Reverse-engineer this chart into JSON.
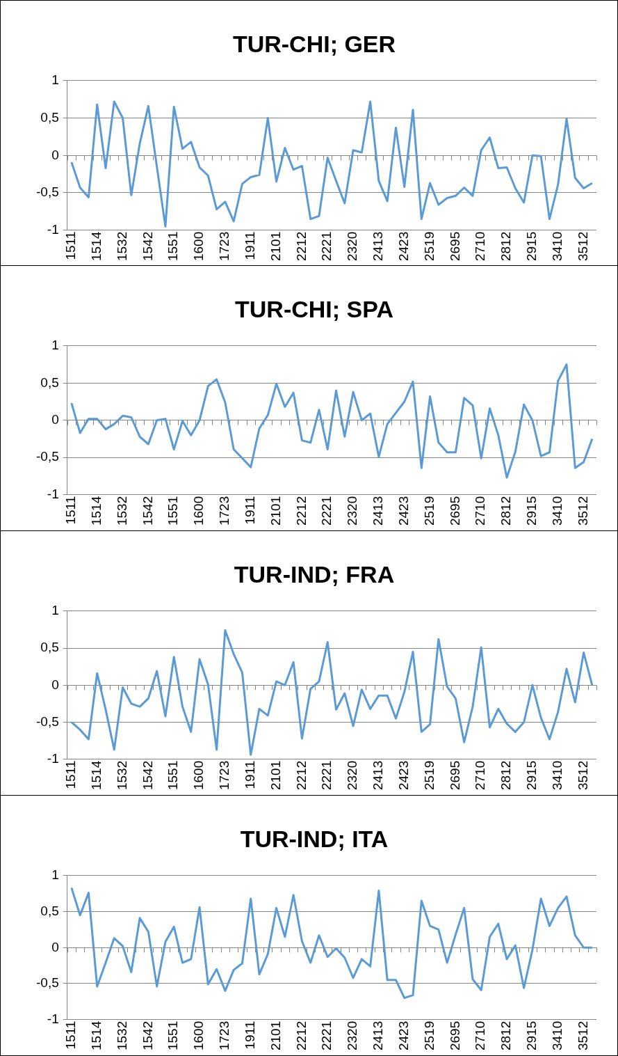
{
  "chart_data": [
    {
      "type": "line",
      "title": "TUR-CHI; GER",
      "categories": [
        "1511",
        null,
        null,
        "1514",
        null,
        null,
        "1532",
        null,
        null,
        "1542",
        null,
        null,
        "1551",
        null,
        null,
        "1600",
        null,
        null,
        "1723",
        null,
        null,
        "1911",
        null,
        null,
        "2101",
        null,
        null,
        "2212",
        null,
        null,
        "2221",
        null,
        null,
        "2320",
        null,
        null,
        "2413",
        null,
        null,
        "2423",
        null,
        null,
        "2519",
        null,
        null,
        "2695",
        null,
        null,
        "2710",
        null,
        null,
        "2812",
        null,
        null,
        "2915",
        null,
        null,
        "3410",
        null,
        null,
        "3512",
        null
      ],
      "series": [
        {
          "color": "#5b9bd5",
          "values": [
            -0.09,
            -0.43,
            -0.56,
            0.68,
            -0.17,
            0.72,
            0.5,
            -0.53,
            0.16,
            0.66,
            -0.15,
            -0.95,
            0.65,
            0.09,
            0.18,
            -0.16,
            -0.27,
            -0.72,
            -0.62,
            -0.88,
            -0.38,
            -0.29,
            -0.26,
            0.5,
            -0.35,
            0.1,
            -0.19,
            -0.14,
            -0.85,
            -0.81,
            -0.03,
            -0.34,
            -0.64,
            0.07,
            0.04,
            0.72,
            -0.34,
            -0.61,
            0.37,
            -0.42,
            0.61,
            -0.85,
            -0.37,
            -0.66,
            -0.57,
            -0.54,
            -0.43,
            -0.54,
            0.07,
            0.24,
            -0.17,
            -0.16,
            -0.44,
            -0.63,
            0,
            -0.01,
            -0.85,
            -0.39,
            0.49,
            -0.3,
            -0.44,
            -0.37
          ]
        }
      ],
      "ylim": [
        -1,
        1
      ],
      "yticks": [
        {
          "value": -1,
          "label": "-1"
        },
        {
          "value": -0.5,
          "label": "-0,5"
        },
        {
          "value": 0,
          "label": "0"
        },
        {
          "value": 0.5,
          "label": "0,5"
        },
        {
          "value": 1,
          "label": "1"
        }
      ],
      "grid": "y"
    },
    {
      "type": "line",
      "title": "TUR-CHI; SPA",
      "categories": [
        "1511",
        null,
        null,
        "1514",
        null,
        null,
        "1532",
        null,
        null,
        "1542",
        null,
        null,
        "1551",
        null,
        null,
        "1600",
        null,
        null,
        "1723",
        null,
        null,
        "1911",
        null,
        null,
        "2101",
        null,
        null,
        "2212",
        null,
        null,
        "2221",
        null,
        null,
        "2320",
        null,
        null,
        "2413",
        null,
        null,
        "2423",
        null,
        null,
        "2519",
        null,
        null,
        "2695",
        null,
        null,
        "2710",
        null,
        null,
        "2812",
        null,
        null,
        "2915",
        null,
        null,
        "3410",
        null,
        null,
        "3512",
        null
      ],
      "series": [
        {
          "color": "#5b9bd5",
          "values": [
            0.23,
            -0.17,
            0.02,
            0.02,
            -0.12,
            -0.05,
            0.06,
            0.04,
            -0.22,
            -0.32,
            0,
            0.02,
            -0.39,
            -0.01,
            -0.2,
            0,
            0.46,
            0.55,
            0.24,
            -0.39,
            -0.51,
            -0.63,
            -0.11,
            0.07,
            0.49,
            0.18,
            0.37,
            -0.27,
            -0.3,
            0.14,
            -0.39,
            0.4,
            -0.22,
            0.38,
            0,
            0.09,
            -0.49,
            -0.05,
            0.1,
            0.25,
            0.52,
            -0.64,
            0.32,
            -0.3,
            -0.43,
            -0.43,
            0.3,
            0.2,
            -0.51,
            0.16,
            -0.2,
            -0.77,
            -0.42,
            0.21,
            0,
            -0.48,
            -0.43,
            0.53,
            0.75,
            -0.64,
            -0.56,
            -0.25
          ]
        }
      ],
      "ylim": [
        -1,
        1
      ],
      "yticks": [
        {
          "value": -1,
          "label": "-1"
        },
        {
          "value": -0.5,
          "label": "-0,5"
        },
        {
          "value": 0,
          "label": "0"
        },
        {
          "value": 0.5,
          "label": "0,5"
        },
        {
          "value": 1,
          "label": "1"
        }
      ],
      "grid": "y"
    },
    {
      "type": "line",
      "title": "TUR-IND; FRA",
      "categories": [
        "1511",
        null,
        null,
        "1514",
        null,
        null,
        "1532",
        null,
        null,
        "1542",
        null,
        null,
        "1551",
        null,
        null,
        "1600",
        null,
        null,
        "1723",
        null,
        null,
        "1911",
        null,
        null,
        "2101",
        null,
        null,
        "2212",
        null,
        null,
        "2221",
        null,
        null,
        "2320",
        null,
        null,
        "2413",
        null,
        null,
        "2423",
        null,
        null,
        "2519",
        null,
        null,
        "2695",
        null,
        null,
        "2710",
        null,
        null,
        "2812",
        null,
        null,
        "2915",
        null,
        null,
        "3410",
        null,
        null,
        "3512",
        null
      ],
      "series": [
        {
          "color": "#5b9bd5",
          "values": [
            -0.5,
            -0.6,
            -0.73,
            0.16,
            -0.33,
            -0.87,
            -0.03,
            -0.25,
            -0.29,
            -0.18,
            0.19,
            -0.42,
            0.38,
            -0.29,
            -0.63,
            0.35,
            0.01,
            -0.87,
            0.74,
            0.42,
            0.17,
            -0.94,
            -0.32,
            -0.41,
            0.05,
            0,
            0.31,
            -0.72,
            -0.05,
            0.05,
            0.58,
            -0.33,
            -0.11,
            -0.55,
            -0.06,
            -0.32,
            -0.14,
            -0.14,
            -0.45,
            -0.09,
            0.45,
            -0.63,
            -0.53,
            0.62,
            -0.02,
            -0.18,
            -0.77,
            -0.29,
            0.51,
            -0.57,
            -0.32,
            -0.52,
            -0.63,
            -0.5,
            0,
            -0.44,
            -0.73,
            -0.36,
            0.22,
            -0.23,
            0.44,
            0
          ]
        }
      ],
      "ylim": [
        -1,
        1
      ],
      "yticks": [
        {
          "value": -1,
          "label": "-1"
        },
        {
          "value": -0.5,
          "label": "-0,5"
        },
        {
          "value": 0,
          "label": "0"
        },
        {
          "value": 0.5,
          "label": "0,5"
        },
        {
          "value": 1,
          "label": "1"
        }
      ],
      "grid": "y"
    },
    {
      "type": "line",
      "title": "TUR-IND; ITA",
      "categories": [
        "1511",
        null,
        null,
        "1514",
        null,
        null,
        "1532",
        null,
        null,
        "1542",
        null,
        null,
        "1551",
        null,
        null,
        "1600",
        null,
        null,
        "1723",
        null,
        null,
        "1911",
        null,
        null,
        "2101",
        null,
        null,
        "2212",
        null,
        null,
        "2221",
        null,
        null,
        "2320",
        null,
        null,
        "2413",
        null,
        null,
        "2423",
        null,
        null,
        "2519",
        null,
        null,
        "2695",
        null,
        null,
        "2710",
        null,
        null,
        "2812",
        null,
        null,
        "2915",
        null,
        null,
        "3410",
        null,
        null,
        "3512",
        null
      ],
      "series": [
        {
          "color": "#5b9bd5",
          "values": [
            0.83,
            0.45,
            0.76,
            -0.54,
            -0.21,
            0.13,
            0.02,
            -0.34,
            0.41,
            0.22,
            -0.54,
            0.08,
            0.29,
            -0.21,
            -0.16,
            0.56,
            -0.51,
            -0.3,
            -0.6,
            -0.31,
            -0.22,
            0.68,
            -0.37,
            -0.09,
            0.55,
            0.15,
            0.73,
            0.09,
            -0.21,
            0.17,
            -0.13,
            -0.01,
            -0.14,
            -0.42,
            -0.16,
            -0.26,
            0.79,
            -0.45,
            -0.45,
            -0.7,
            -0.66,
            0.65,
            0.3,
            0.25,
            -0.21,
            0.18,
            0.55,
            -0.44,
            -0.59,
            0.15,
            0.33,
            -0.16,
            0.03,
            -0.56,
            -0.03,
            0.68,
            0.3,
            0.55,
            0.71,
            0.17,
            0,
            0
          ]
        }
      ],
      "ylim": [
        -1,
        1
      ],
      "yticks": [
        {
          "value": -1,
          "label": "-1"
        },
        {
          "value": -0.5,
          "label": "-0,5"
        },
        {
          "value": 0,
          "label": "0"
        },
        {
          "value": 0.5,
          "label": "0,5"
        },
        {
          "value": 1,
          "label": "1"
        }
      ],
      "grid": "y"
    }
  ]
}
